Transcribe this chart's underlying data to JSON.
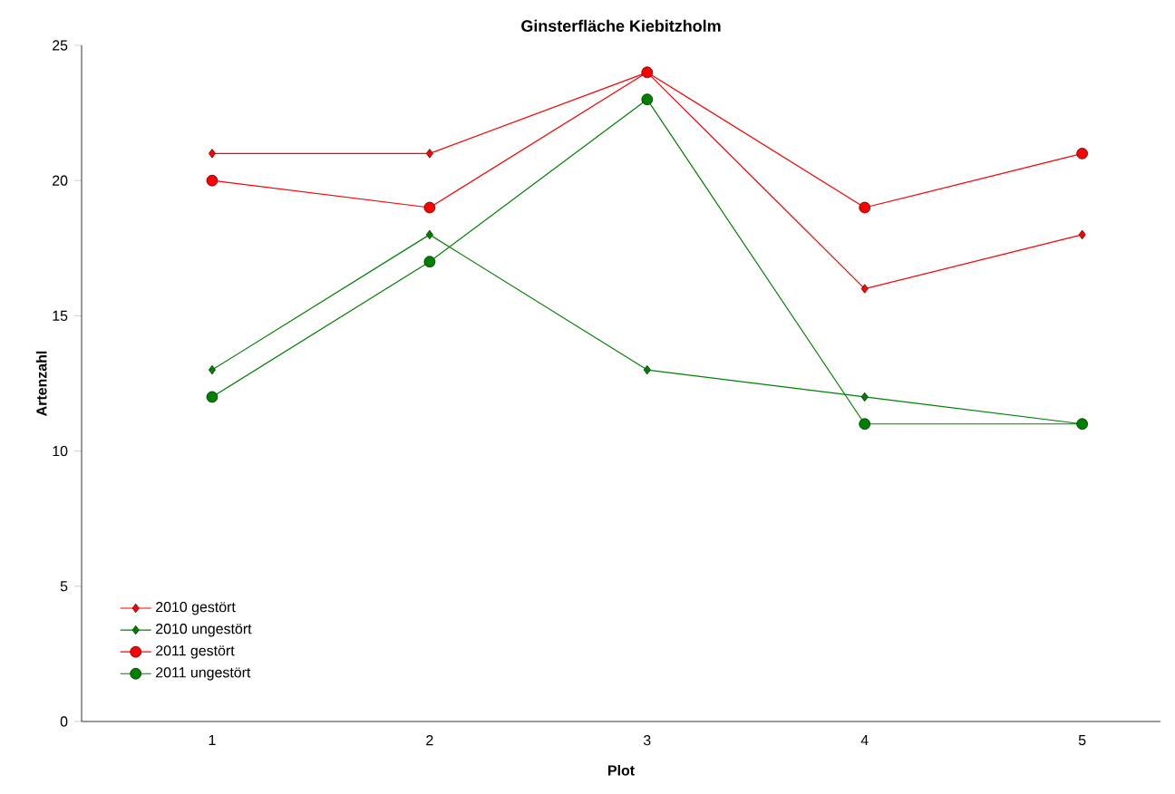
{
  "chart_data": {
    "type": "line",
    "title": "Ginsterfläche Kiebitzholm",
    "xlabel": "Plot",
    "ylabel": "Artenzahl",
    "categories": [
      "1",
      "2",
      "3",
      "4",
      "5"
    ],
    "series": [
      {
        "name": "2010 gestört",
        "color": "#ff0000",
        "marker": "diamond",
        "values": [
          21,
          21,
          24,
          16,
          18
        ]
      },
      {
        "name": "2010 ungestört",
        "color": "#008000",
        "marker": "diamond",
        "values": [
          13,
          18,
          13,
          12,
          11
        ]
      },
      {
        "name": "2011 gestört",
        "color": "#ff0000",
        "marker": "circle",
        "values": [
          20,
          19,
          24,
          19,
          21
        ]
      },
      {
        "name": "2011 ungestört",
        "color": "#008000",
        "marker": "circle",
        "values": [
          12,
          17,
          23,
          11,
          11
        ]
      }
    ],
    "ylim": [
      0,
      25
    ],
    "yticks": [
      0,
      5,
      10,
      15,
      20,
      25
    ],
    "grid": false,
    "legend": "bottom left"
  }
}
